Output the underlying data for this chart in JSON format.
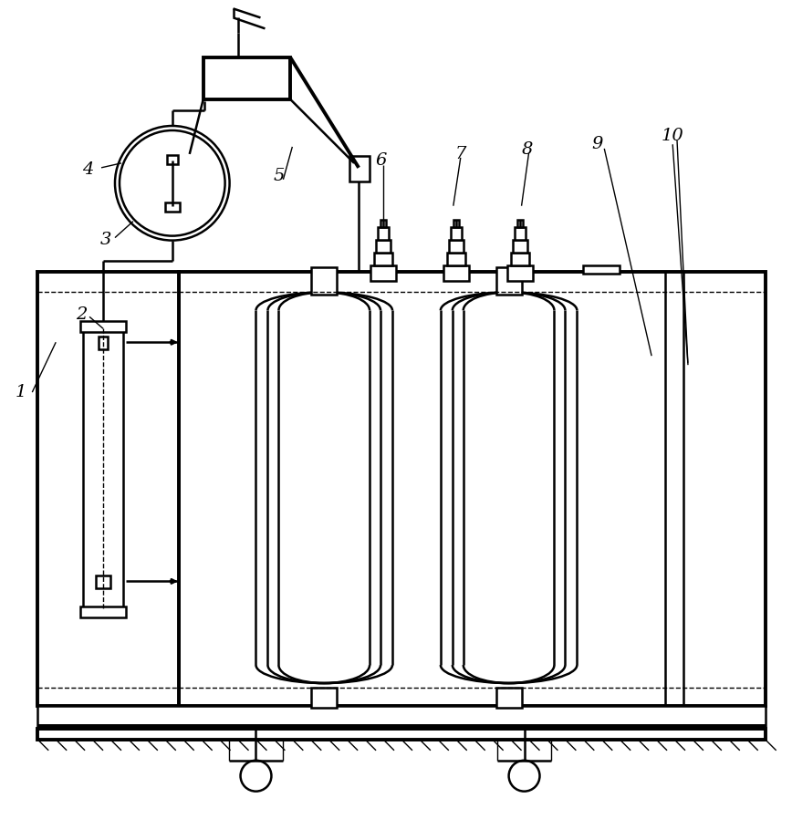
{
  "bg_color": "#ffffff",
  "line_color": "#000000",
  "lw": 1.8,
  "lw_thick": 2.8,
  "lw_thin": 1.0,
  "fig_width": 8.68,
  "fig_height": 8.98
}
